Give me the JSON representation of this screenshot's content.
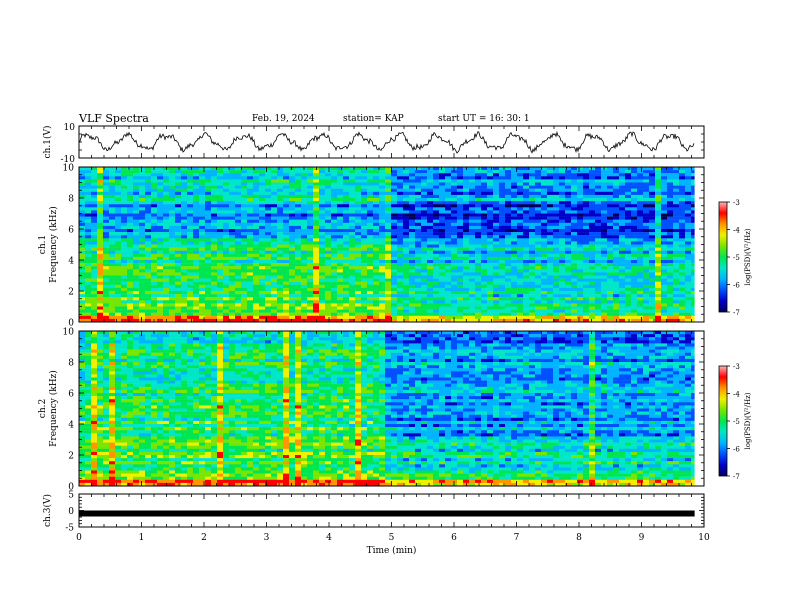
{
  "header": {
    "title": "VLF Spectra",
    "date": "Feb. 19, 2024",
    "station": "station= KAP",
    "start_ut": "start  UT =   16: 30: 1"
  },
  "chart_data": [
    {
      "type": "line",
      "panel": "ch1-waveform",
      "ylabel": "ch.1(V)",
      "ylim": [
        -10,
        10
      ],
      "ytick_labels": [
        "-10",
        "10"
      ],
      "xlim": [
        0,
        10
      ],
      "x_extent_min": [
        0,
        9.85
      ],
      "oscillation_period_min": 0.62,
      "mean_level_v": 0
    },
    {
      "type": "heatmap",
      "panel": "ch1-spectrogram",
      "ylabel": "ch.1\nFrequency (kHz)",
      "ylim": [
        0,
        10
      ],
      "ytick_labels": [
        "0",
        "2",
        "4",
        "6",
        "8",
        "10"
      ],
      "xlim": [
        0,
        10
      ],
      "x_extent_min": [
        0,
        9.85
      ],
      "change_at_min": 4.85,
      "colorbar": {
        "label": "log(PSD)(V²/Hz)",
        "range": [
          -7,
          -3
        ],
        "tick_labels": [
          "-7",
          "-6",
          "-5",
          "-4",
          "-3"
        ]
      }
    },
    {
      "type": "heatmap",
      "panel": "ch2-spectrogram",
      "ylabel": "ch.2\nFrequency (kHz)",
      "ylim": [
        0,
        10
      ],
      "ytick_labels": [
        "0",
        "2",
        "4",
        "6",
        "8",
        "10"
      ],
      "xlim": [
        0,
        10
      ],
      "x_extent_min": [
        0,
        9.85
      ],
      "change_at_min": 4.85,
      "colorbar": {
        "label": "log(PSD)(V²/Hz)",
        "range": [
          -7,
          -3
        ],
        "tick_labels": [
          "-7",
          "-6",
          "-5",
          "-4",
          "-3"
        ]
      }
    },
    {
      "type": "line",
      "panel": "ch3-waveform",
      "ylabel": "ch.3(V)",
      "ylim": [
        -5,
        5
      ],
      "ytick_labels": [
        "-5",
        "0",
        "5"
      ],
      "xlim": [
        0,
        10
      ],
      "x_extent_min": [
        0,
        9.85
      ],
      "mean_level_v": -0.9,
      "xlabel": "Time  (min)",
      "xtick_labels": [
        "0",
        "1",
        "2",
        "3",
        "4",
        "5",
        "6",
        "7",
        "8",
        "9",
        "10"
      ]
    }
  ],
  "colors": {
    "colormap": [
      "#00005a",
      "#0000c8",
      "#0050ff",
      "#00b4ff",
      "#00e6c8",
      "#00e650",
      "#78e600",
      "#f0f000",
      "#ff9600",
      "#ff0000",
      "#ffb4b4"
    ],
    "line": "#000000"
  }
}
